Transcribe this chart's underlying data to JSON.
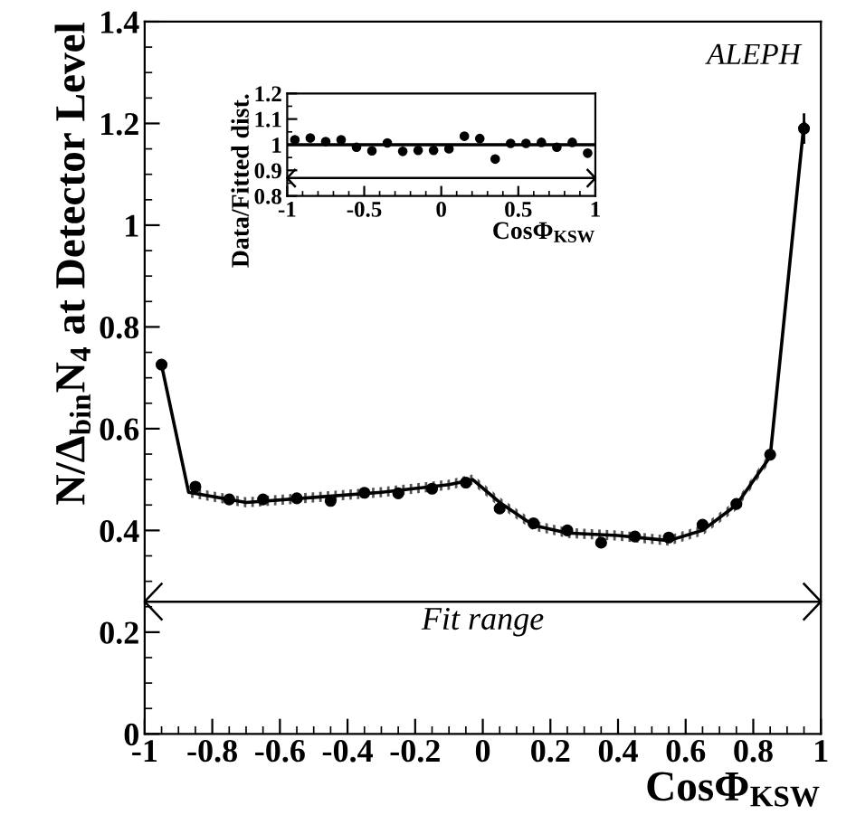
{
  "chart_data": [
    {
      "type": "scatter",
      "xlabel": "CosΦ$_{KSW}$",
      "ylabel": "N/Δ$_{bin}$N$_{4}$ at Detector Level",
      "xlim": [
        -1,
        1
      ],
      "ylim": [
        0,
        1.4
      ],
      "xticks": [
        -1,
        -0.8,
        -0.6,
        -0.4,
        -0.2,
        0,
        0.2,
        0.4,
        0.6,
        0.8,
        1
      ],
      "yticks": [
        0,
        0.2,
        0.4,
        0.6,
        0.8,
        1,
        1.2,
        1.4
      ],
      "grid": false,
      "legend": false,
      "annotations": [
        "ALEPH"
      ],
      "ref_lines": [
        {
          "axis": "y",
          "value": 0.26,
          "label": "Fit range",
          "color": "#000000"
        }
      ],
      "series": [
        {
          "type": "line",
          "color": "#000000",
          "x": [
            -0.95,
            -0.87,
            -0.7,
            -0.5,
            -0.3,
            -0.1,
            -0.03,
            0.05,
            0.15,
            0.25,
            0.4,
            0.55,
            0.65,
            0.75,
            0.85,
            0.95
          ],
          "values": [
            0.725,
            0.475,
            0.455,
            0.465,
            0.475,
            0.49,
            0.5,
            0.455,
            0.41,
            0.395,
            0.39,
            0.38,
            0.4,
            0.45,
            0.545,
            1.2
          ],
          "lower": [
            0.715,
            0.465,
            0.445,
            0.455,
            0.465,
            0.48,
            0.49,
            0.445,
            0.4,
            0.385,
            0.38,
            0.37,
            0.39,
            0.44,
            0.535,
            1.19
          ],
          "upper": [
            0.735,
            0.485,
            0.465,
            0.475,
            0.485,
            0.5,
            0.51,
            0.465,
            0.42,
            0.405,
            0.4,
            0.39,
            0.41,
            0.46,
            0.555,
            1.21
          ]
        },
        {
          "color": "#000000",
          "marker": "circle",
          "x": [
            -0.95,
            -0.85,
            -0.75,
            -0.65,
            -0.55,
            -0.45,
            -0.35,
            -0.25,
            -0.15,
            -0.05,
            0.05,
            0.15,
            0.25,
            0.35,
            0.45,
            0.55,
            0.65,
            0.75,
            0.85,
            0.95
          ],
          "values": [
            0.726,
            0.486,
            0.461,
            0.461,
            0.463,
            0.458,
            0.474,
            0.473,
            0.482,
            0.494,
            0.443,
            0.414,
            0.4,
            0.376,
            0.388,
            0.386,
            0.411,
            0.452,
            0.549,
            1.19
          ],
          "errors": [
            null,
            null,
            null,
            null,
            null,
            null,
            null,
            null,
            null,
            null,
            null,
            null,
            null,
            null,
            null,
            null,
            null,
            null,
            null,
            0.03
          ]
        }
      ]
    },
    {
      "type": "scatter",
      "xlabel": "CosΦ$_{KSW}$",
      "ylabel": "Data/Fitted dist.",
      "xlim": [
        -1,
        1
      ],
      "ylim": [
        0.8,
        1.2
      ],
      "xticks": [
        -1,
        -0.5,
        0,
        0.5,
        1
      ],
      "yticks": [
        0.8,
        0.9,
        1,
        1.1,
        1.2
      ],
      "grid": false,
      "legend": false,
      "ref_lines": [
        {
          "axis": "y",
          "value": 0.87,
          "color": "#000000"
        }
      ],
      "series": [
        {
          "type": "line",
          "color": "#000000",
          "x": [
            -1,
            1
          ],
          "values": [
            1,
            1
          ]
        },
        {
          "color": "#000000",
          "marker": "circle",
          "x": [
            -0.95,
            -0.85,
            -0.75,
            -0.65,
            -0.55,
            -0.45,
            -0.35,
            -0.25,
            -0.15,
            -0.05,
            0.05,
            0.15,
            0.25,
            0.35,
            0.45,
            0.55,
            0.65,
            0.75,
            0.85,
            0.95
          ],
          "values": [
            1.019,
            1.026,
            1.012,
            1.019,
            0.99,
            0.976,
            1.007,
            0.974,
            0.978,
            0.978,
            0.984,
            1.033,
            1.024,
            0.944,
            1.005,
            1.005,
            1.009,
            0.99,
            1.009,
            0.967
          ]
        }
      ]
    }
  ]
}
